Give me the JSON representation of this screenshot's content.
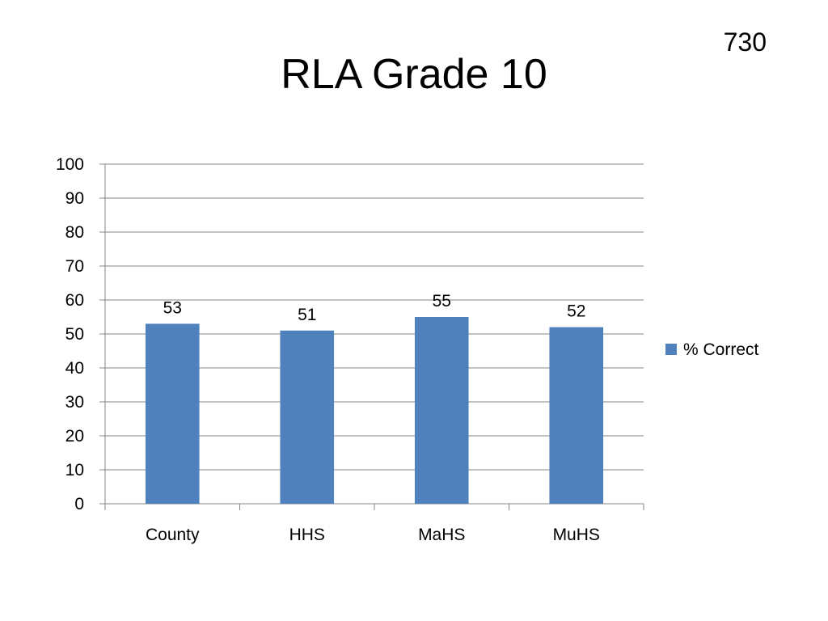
{
  "slide": {
    "number": "730",
    "title": "RLA Grade 10"
  },
  "chart_data": {
    "type": "bar",
    "title": "RLA Grade 10",
    "xlabel": "",
    "ylabel": "",
    "categories": [
      "County",
      "HHS",
      "MaHS",
      "MuHS"
    ],
    "series": [
      {
        "name": "% Correct",
        "values": [
          53,
          51,
          55,
          52
        ],
        "color": "#4f81bd"
      }
    ],
    "ylim": [
      0,
      100
    ],
    "yticks": [
      0,
      10,
      20,
      30,
      40,
      50,
      60,
      70,
      80,
      90,
      100
    ],
    "grid": true,
    "data_labels": true,
    "legend": "right",
    "colors": {
      "bar": "#4f81bd",
      "grid": "#868686",
      "axis": "#868686"
    }
  }
}
